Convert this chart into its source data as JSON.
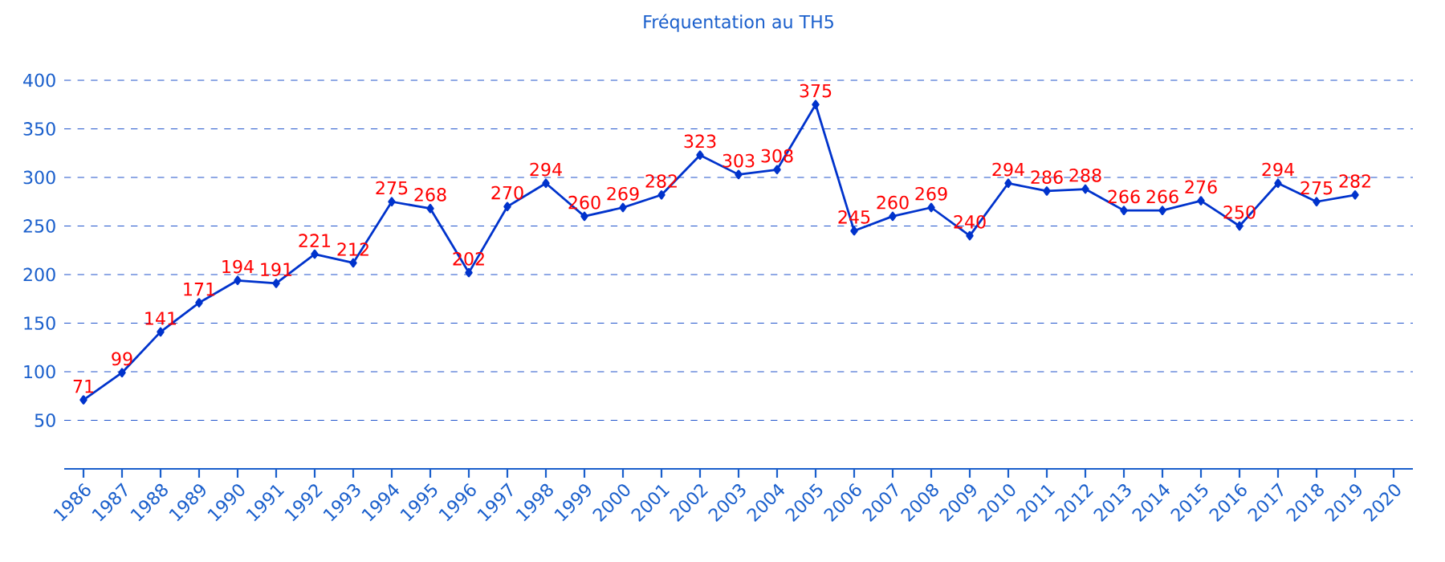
{
  "chart_data": {
    "type": "line",
    "title": "Fréquentation au TH5",
    "categories": [
      "1986",
      "1987",
      "1988",
      "1989",
      "1990",
      "1991",
      "1992",
      "1993",
      "1994",
      "1995",
      "1996",
      "1997",
      "1998",
      "1999",
      "2000",
      "2001",
      "2002",
      "2003",
      "2004",
      "2005",
      "2006",
      "2007",
      "2008",
      "2009",
      "2010",
      "2011",
      "2012",
      "2013",
      "2014",
      "2015",
      "2016",
      "2017",
      "2018",
      "2019",
      "2020"
    ],
    "series": [
      {
        "color": "#0033cc",
        "values": [
          71,
          99,
          141,
          171,
          194,
          191,
          221,
          212,
          275,
          268,
          202,
          270,
          294,
          260,
          269,
          282,
          323,
          303,
          308,
          375,
          245,
          260,
          269,
          240,
          294,
          286,
          288,
          266,
          266,
          276,
          250,
          294,
          275,
          282,
          null
        ]
      }
    ],
    "ylim": [
      0,
      400
    ],
    "yticks": [
      50,
      100,
      150,
      200,
      250,
      300,
      350,
      400
    ],
    "grid": "y",
    "marker": "diamond",
    "line_style": "solid",
    "data_labels": true
  }
}
